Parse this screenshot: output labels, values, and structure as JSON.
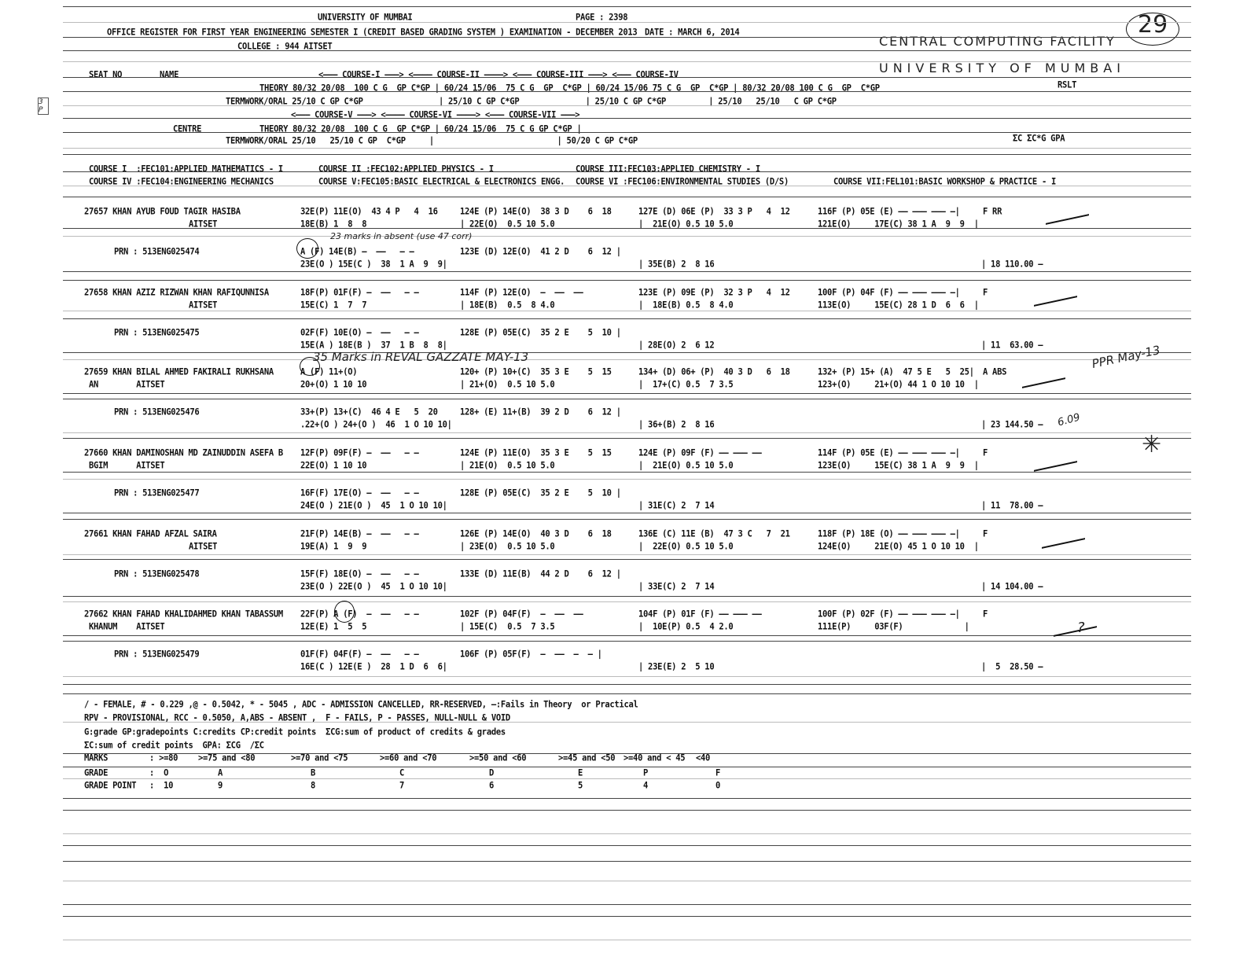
{
  "header": {
    "university": "UNIVERSITY OF MUMBAI",
    "page": "PAGE : 2398",
    "title": "OFFICE REGISTER FOR FIRST YEAR ENGINEERING SEMESTER I (CREDIT BASED GRADING SYSTEM ) EXAMINATION - DECEMBER 2013",
    "date": "DATE : MARCH 6, 2014",
    "college": "COLLEGE : 944 AITSET"
  },
  "stamp": {
    "line1": "CENTRAL COMPUTING FACILITY",
    "line2": "UNIVERSITY OF MUMBAI",
    "page_no": "29"
  },
  "margin_note": "3 P",
  "columns": {
    "r1": [
      "SEAT NO",
      "NAME",
      "<——— COURSE-I ———> <———— COURSE-II ————> <——— COURSE-III ———> <——— COURSE-IV"
    ],
    "r2": [
      "THEORY 80/32 20/08  100 C G  GP C*GP | 60/24 15/06  75 C G  GP  C*GP | 60/24 15/06 75 C G  GP  C*GP | 80/32 20/08 100 C G  GP  C*GP",
      "RSLT"
    ],
    "r3": [
      "TERMWORK/ORAL 25/10 C GP C*GP                | 25/10 C GP C*GP              | 25/10 C GP C*GP         | 25/10   25/10   C GP C*GP"
    ],
    "r4": [
      "<——— COURSE-V ———> <———— COURSE-VI ————> <——— COURSE-VII ———>"
    ],
    "r5": [
      "CENTRE",
      "THEORY 80/32 20/08  100 C G  GP C*GP | 60/24 15/06  75 C G GP C*GP |"
    ],
    "r6": [
      "TERMWORK/ORAL 25/10   25/10 C GP  C*GP     |                          | 50/20 C GP C*GP",
      "ΣC ΣC*G GPA"
    ]
  },
  "courses": [
    "COURSE I  :FEC101:APPLIED MATHEMATICS - I",
    "COURSE II :FEC102:APPLIED PHYSICS - I",
    "COURSE III:FEC103:APPLIED CHEMISTRY - I",
    "COURSE IV :FEC104:ENGINEERING MECHANICS",
    "COURSE V:FEC105:BASIC ELECTRICAL & ELECTRONICS ENGG.",
    "COURSE VI :FEC106:ENVIRONMENTAL STUDIES (D/S)",
    "COURSE VII:FEL101:BASIC WORKSHOP & PRACTICE - I"
  ],
  "students": [
    {
      "lines": [
        [
          "27657 KHAN AYUB FOUD TAGIR HASIBA",
          "32E(P) 11E(O)  43 4 P   4  16",
          "124E (P) 14E(O)  38 3 D    6  18",
          "127E (D) 06E (P)  33 3 P   4  12",
          "116F (P) 05E (E) —— ——— ——— —|",
          "F RR"
        ],
        [
          "AITSET",
          "18E(B) 1  8  8",
          "| 22E(O)  0.5 10 5.0",
          "|  21E(O) 0.5 10 5.0",
          "121E(O)     17E(C) 38 1 A  9  9  |",
          ""
        ],
        [
          "PRN : 513ENG025474",
          "A (F) 14E(B) —  ——   — —",
          "123E (D) 12E(O)  41 2 D    6  12 |",
          "",
          "",
          ""
        ],
        [
          "",
          "23E(O ) 15E(C )  38  1 A  9  9|",
          "",
          "| 35E(B) 2  8 16",
          "",
          "| 18 110.00 —"
        ]
      ]
    },
    {
      "lines": [
        [
          "27658 KHAN AZIZ RIZWAN KHAN RAFIQUNNISA",
          "18F(P) 01F(F) —  ——   — —",
          "114F (P) 12E(O)  —  ——  ——",
          "123E (P) 09E (P)  32 3 P   4  12",
          "100F (P) 04F (F) —— ——— ——— —|",
          "F"
        ],
        [
          "AITSET",
          "15E(C) 1  7  7",
          "| 18E(B)  0.5  8 4.0",
          "|  18E(B) 0.5  8 4.0",
          "113E(O)     15E(C) 28 1 D  6  6  |",
          ""
        ],
        [
          "PRN : 513ENG025475",
          "02F(F) 10E(O) —  ——   — —",
          "128E (P) 05E(C)  35 2 E    5  10 |",
          "",
          "",
          ""
        ],
        [
          "",
          "15E(A ) 18E(B )  37  1 B  8  8|",
          "",
          "| 28E(O) 2  6 12",
          "",
          "| 11  63.00 —"
        ]
      ]
    },
    {
      "lines": [
        [
          "27659 KHAN BILAL AHMED FAKIRALI RUKHSANA",
          "A (F) 11+(O)",
          "120+ (P) 10+(C)  35 3 E    5  15",
          "134+ (D) 06+ (P)  40 3 D   6  18",
          "132+ (P) 15+ (A)  47 5 E   5  25|",
          "A ABS"
        ],
        [
          "AN        AITSET",
          "20+(O) 1 10 10",
          "| 21+(O)  0.5 10 5.0",
          "|  17+(C) 0.5  7 3.5",
          "123+(O)     21+(O) 44 1 O 10 10  |",
          ""
        ],
        [
          "PRN : 513ENG025476",
          "33+(P) 13+(C)  46 4 E   5  20",
          "128+ (E) 11+(B)  39 2 D    6  12 |",
          "",
          "",
          ""
        ],
        [
          "",
          ".22+(O ) 24+(O )  46  1 O 10 10|",
          "",
          "| 36+(B) 2  8 16",
          "",
          "| 23 144.50 —"
        ]
      ]
    },
    {
      "lines": [
        [
          "27660 KHAN DAMINOSHAN MD ZAINUDDIN ASEFA B",
          "12F(P) 09F(F) —  ——   — —",
          "124E (P) 11E(O)  35 3 E    5  15",
          "124E (P) 09F (F) —— ——— ——",
          "114F (P) 05E (E) —— ——— ——— —|",
          "F"
        ],
        [
          "BGIM      AITSET",
          "22E(O) 1 10 10",
          "| 21E(O)  0.5 10 5.0",
          "|  21E(O) 0.5 10 5.0",
          "123E(O)     15E(C) 38 1 A  9  9  |",
          ""
        ],
        [
          "PRN : 513ENG025477",
          "16F(F) 17E(O) —  ——   — —",
          "128E (P) 05E(C)  35 2 E    5  10 |",
          "",
          "",
          ""
        ],
        [
          "",
          "24E(O ) 21E(O )  45  1 O 10 10|",
          "",
          "| 31E(C) 2  7 14",
          "",
          "| 11  78.00 —"
        ]
      ]
    },
    {
      "lines": [
        [
          "27661 KHAN FAHAD AFZAL SAIRA",
          "21F(P) 14E(B) —  ——   — —",
          "126E (P) 14E(O)  40 3 D    6  18",
          "136E (C) 11E (B)  47 3 C   7  21",
          "118F (P) 18E (O) —— ——— ——— —|",
          "F"
        ],
        [
          "AITSET",
          "19E(A) 1  9  9",
          "| 23E(O)  0.5 10 5.0",
          "|  22E(O) 0.5 10 5.0",
          "124E(O)     21E(O) 45 1 O 10 10  |",
          ""
        ],
        [
          "PRN : 513ENG025478",
          "15F(F) 18E(O) —  ——   — —",
          "133E (D) 11E(B)  44 2 D    6  12 |",
          "",
          "",
          ""
        ],
        [
          "",
          "23E(O ) 22E(O )  45  1 O 10 10|",
          "",
          "| 33E(C) 2  7 14",
          "",
          "| 14 104.00 —"
        ]
      ]
    },
    {
      "lines": [
        [
          "27662 KHAN FAHAD KHALIDAHMED KHAN TABASSUM",
          "22F(P) A (F)  —  ——   — —",
          "102F (P) 04F(F)  —  ——  ——",
          "104F (P) 01F (F) —— ——— ——",
          "100F (P) 02F (F) —— ——— ——— —|",
          "F"
        ],
        [
          "KHANUM    AITSET",
          "12E(E) 1  5  5",
          "| 15E(C)  0.5  7 3.5",
          "|  10E(P) 0.5  4 2.0",
          "111E(P)     03F(F)             |",
          ""
        ],
        [
          "PRN : 513ENG025479",
          "01F(F) 04F(F) —  ——   — —",
          "106F (P) 05F(F)  —  ——  —  — |",
          "",
          "",
          ""
        ],
        [
          "",
          "16E(C ) 12E(E )  28  1 D  6  6|",
          "",
          "| 23E(E) 2  5 10",
          "",
          "|  5  28.50 —"
        ]
      ]
    }
  ],
  "handwritten": [
    "23 marks in absent (use 47 corr)",
    "35 Marks in REVAL GAZZATE MAY-13",
    "PPR May-13",
    "6.09",
    "?"
  ],
  "legend": [
    "/ - FEMALE, # - 0.229 ,@ - 0.5042, * - 5045 , ADC - ADMISSION CANCELLED, RR-RESERVED, —:Fails in Theory  or Practical",
    "RPV - PROVISIONAL, RCC - 0.5050, A,ABS - ABSENT ,  F - FAILS, P - PASSES, NULL-NULL & VOID",
    "G:grade GP:gradepoints C:credits CP:credit points  ΣCG:sum of product of credits & grades",
    "ΣC:sum of credit points  GPA: ΣCG  /ΣC"
  ],
  "grade_table": {
    "marks": [
      "MARKS",
      "  : >=80",
      ">=75 and <80",
      ">=70 and <75",
      ">=60 and <70",
      ">=50 and <60",
      ">=45 and <50",
      ">=40 and < 45",
      "<40"
    ],
    "grade": [
      "GRADE",
      "  :  O",
      "A",
      "B",
      "C",
      "D",
      "E",
      "P",
      "F"
    ],
    "point": [
      "GRADE POINT",
      "  :  10",
      "9",
      "8",
      "7",
      "6",
      "5",
      "4",
      "0"
    ]
  }
}
